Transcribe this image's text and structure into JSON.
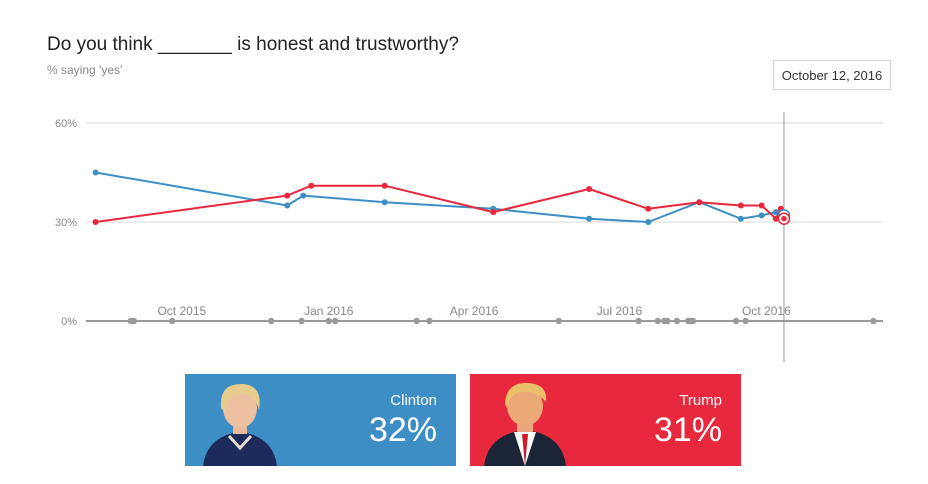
{
  "header": {
    "title": "Do you think _______ is honest and trustworthy?",
    "subtitle": "% saying 'yes'",
    "selected_date": "October 12, 2016"
  },
  "colors": {
    "clinton": "#3e8ec6",
    "trump": "#e8283c",
    "grid": "#d9d9d9",
    "poll_dot": "#9a9a9a"
  },
  "cards": [
    {
      "name": "Clinton",
      "value": "32%",
      "icon": "candidate-portrait-icon"
    },
    {
      "name": "Trump",
      "value": "31%",
      "icon": "candidate-portrait-icon"
    }
  ],
  "chart_data": {
    "type": "line",
    "title": "Do you think _______ is honest and trustworthy?",
    "subtitle": "% saying 'yes'",
    "ylim": [
      0,
      60
    ],
    "yticks": [
      0,
      30,
      60
    ],
    "ytick_labels": [
      "0%",
      "30%",
      "60%"
    ],
    "xlim": [
      "2015-08-02",
      "2016-12-13"
    ],
    "xticks": [
      {
        "date": "2015-10-01",
        "label": "Oct 2015"
      },
      {
        "date": "2016-01-01",
        "label": "Jan 2016"
      },
      {
        "date": "2016-04-01",
        "label": "Apr 2016"
      },
      {
        "date": "2016-07-01",
        "label": "Jul 2016"
      },
      {
        "date": "2016-10-01",
        "label": "Oct 2016"
      }
    ],
    "grid": true,
    "series": [
      {
        "name": "Clinton",
        "color": "#3e8ec6",
        "points": [
          {
            "x": "2015-08-08",
            "y": 45
          },
          {
            "x": "2015-12-06",
            "y": 35
          },
          {
            "x": "2015-12-16",
            "y": 38
          },
          {
            "x": "2016-02-05",
            "y": 36
          },
          {
            "x": "2016-04-13",
            "y": 34
          },
          {
            "x": "2016-06-12",
            "y": 31
          },
          {
            "x": "2016-07-19",
            "y": 30
          },
          {
            "x": "2016-08-20",
            "y": 36
          },
          {
            "x": "2016-09-15",
            "y": 31
          },
          {
            "x": "2016-09-28",
            "y": 32
          },
          {
            "x": "2016-10-07",
            "y": 33
          },
          {
            "x": "2016-10-12",
            "y": 32
          }
        ]
      },
      {
        "name": "Trump",
        "color": "#e8283c",
        "points": [
          {
            "x": "2015-08-08",
            "y": 30
          },
          {
            "x": "2015-12-06",
            "y": 38
          },
          {
            "x": "2015-12-21",
            "y": 41
          },
          {
            "x": "2016-02-05",
            "y": 41
          },
          {
            "x": "2016-04-13",
            "y": 33
          },
          {
            "x": "2016-06-12",
            "y": 40
          },
          {
            "x": "2016-07-19",
            "y": 34
          },
          {
            "x": "2016-08-20",
            "y": 36
          },
          {
            "x": "2016-09-15",
            "y": 35
          },
          {
            "x": "2016-09-28",
            "y": 35
          },
          {
            "x": "2016-10-07",
            "y": 31
          },
          {
            "x": "2016-10-10",
            "y": 34
          },
          {
            "x": "2016-10-12",
            "y": 31
          }
        ]
      }
    ],
    "poll_dates": [
      "2015-08-30",
      "2015-09-01",
      "2015-09-25",
      "2015-11-26",
      "2015-12-15",
      "2016-01-01",
      "2016-01-05",
      "2016-02-25",
      "2016-03-04",
      "2016-05-24",
      "2016-07-13",
      "2016-07-25",
      "2016-07-29",
      "2016-07-31",
      "2016-08-06",
      "2016-08-13",
      "2016-08-14",
      "2016-08-16",
      "2016-09-12",
      "2016-09-18",
      "2016-12-07"
    ],
    "marker_date": "2016-10-12"
  }
}
